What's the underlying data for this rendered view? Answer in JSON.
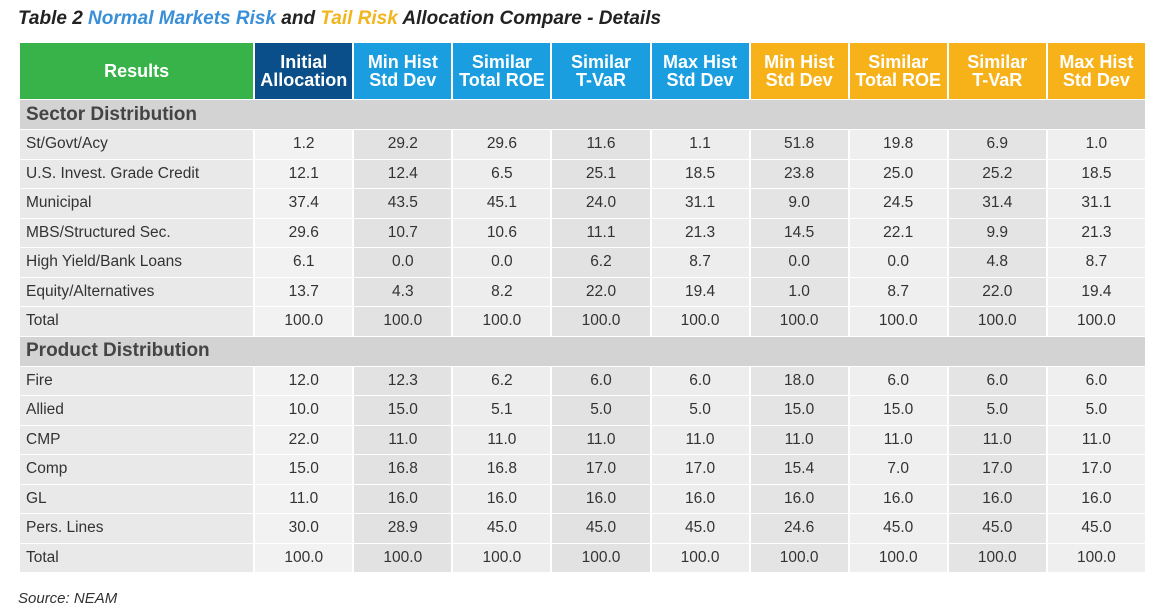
{
  "title": {
    "prefix": "Table 2 ",
    "normal": "Normal Markets Risk",
    "and": " and ",
    "tail": "Tail Risk",
    "suffix": " Allocation Compare - Details"
  },
  "colors": {
    "results_header": "#37b34a",
    "initial_header": "#0b4f8a",
    "normal_header": "#1a9ee0",
    "tail_header": "#f7b21a",
    "title_blue": "#3a8fd9",
    "title_gold": "#f2b51b",
    "section_bg": "#d3d3d3"
  },
  "headers": [
    {
      "line1": "Results",
      "line2": ""
    },
    {
      "line1": "Initial",
      "line2": "Allocation"
    },
    {
      "line1": "Min Hist",
      "line2": "Std Dev"
    },
    {
      "line1": "Similar",
      "line2": "Total ROE"
    },
    {
      "line1": "Similar",
      "line2": "T-VaR"
    },
    {
      "line1": "Max Hist",
      "line2": "Std Dev"
    },
    {
      "line1": "Min Hist",
      "line2": "Std Dev"
    },
    {
      "line1": "Similar",
      "line2": "Total ROE"
    },
    {
      "line1": "Similar",
      "line2": "T-VaR"
    },
    {
      "line1": "Max Hist",
      "line2": "Std Dev"
    }
  ],
  "sections": [
    {
      "name": "Sector Distribution",
      "rows": [
        {
          "label": "St/Govt/Acy",
          "values": [
            "1.2",
            "29.2",
            "29.6",
            "11.6",
            "1.1",
            "51.8",
            "19.8",
            "6.9",
            "1.0"
          ]
        },
        {
          "label": "U.S. Invest. Grade Credit",
          "values": [
            "12.1",
            "12.4",
            "6.5",
            "25.1",
            "18.5",
            "23.8",
            "25.0",
            "25.2",
            "18.5"
          ]
        },
        {
          "label": "Municipal",
          "values": [
            "37.4",
            "43.5",
            "45.1",
            "24.0",
            "31.1",
            "9.0",
            "24.5",
            "31.4",
            "31.1"
          ]
        },
        {
          "label": "MBS/Structured Sec.",
          "values": [
            "29.6",
            "10.7",
            "10.6",
            "11.1",
            "21.3",
            "14.5",
            "22.1",
            "9.9",
            "21.3"
          ]
        },
        {
          "label": "High Yield/Bank Loans",
          "values": [
            "6.1",
            "0.0",
            "0.0",
            "6.2",
            "8.7",
            "0.0",
            "0.0",
            "4.8",
            "8.7"
          ]
        },
        {
          "label": "Equity/Alternatives",
          "values": [
            "13.7",
            "4.3",
            "8.2",
            "22.0",
            "19.4",
            "1.0",
            "8.7",
            "22.0",
            "19.4"
          ]
        },
        {
          "label": "Total",
          "values": [
            "100.0",
            "100.0",
            "100.0",
            "100.0",
            "100.0",
            "100.0",
            "100.0",
            "100.0",
            "100.0"
          ]
        }
      ]
    },
    {
      "name": "Product Distribution",
      "rows": [
        {
          "label": "Fire",
          "values": [
            "12.0",
            "12.3",
            "6.2",
            "6.0",
            "6.0",
            "18.0",
            "6.0",
            "6.0",
            "6.0"
          ]
        },
        {
          "label": "Allied",
          "values": [
            "10.0",
            "15.0",
            "5.1",
            "5.0",
            "5.0",
            "15.0",
            "15.0",
            "5.0",
            "5.0"
          ]
        },
        {
          "label": "CMP",
          "values": [
            "22.0",
            "11.0",
            "11.0",
            "11.0",
            "11.0",
            "11.0",
            "11.0",
            "11.0",
            "11.0"
          ]
        },
        {
          "label": "Comp",
          "values": [
            "15.0",
            "16.8",
            "16.8",
            "17.0",
            "17.0",
            "15.4",
            "7.0",
            "17.0",
            "17.0"
          ]
        },
        {
          "label": "GL",
          "values": [
            "11.0",
            "16.0",
            "16.0",
            "16.0",
            "16.0",
            "16.0",
            "16.0",
            "16.0",
            "16.0"
          ]
        },
        {
          "label": "Pers. Lines",
          "values": [
            "30.0",
            "28.9",
            "45.0",
            "45.0",
            "45.0",
            "24.6",
            "45.0",
            "45.0",
            "45.0"
          ]
        },
        {
          "label": "Total",
          "values": [
            "100.0",
            "100.0",
            "100.0",
            "100.0",
            "100.0",
            "100.0",
            "100.0",
            "100.0",
            "100.0"
          ]
        }
      ]
    }
  ],
  "source": "Source: NEAM"
}
